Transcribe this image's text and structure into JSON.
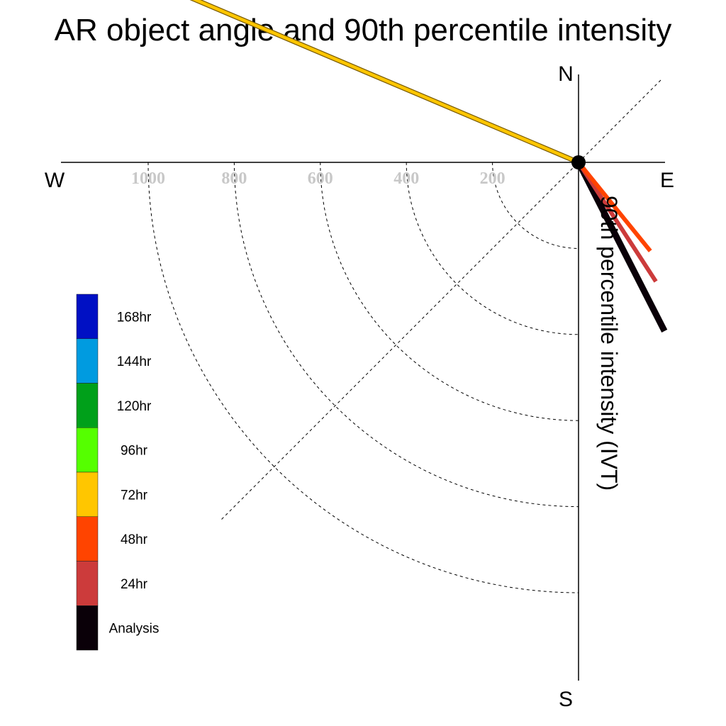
{
  "chart_data": {
    "type": "polar-vector",
    "title": "AR object angle and 90th percentile intensity",
    "radial_label": "90th percentile intensity (IVT)",
    "compass": {
      "north": "N",
      "south": "S",
      "east": "E",
      "west": "W"
    },
    "radial_ticks": [
      200,
      400,
      600,
      800,
      1000
    ],
    "radial_max": 1200,
    "series": [
      {
        "name": "Analysis",
        "angle_deg": -63,
        "magnitude": 440,
        "color": "#0a0008"
      },
      {
        "name": "24hr",
        "angle_deg": -57,
        "magnitude": 330,
        "color": "#cc3b3b"
      },
      {
        "name": "48hr",
        "angle_deg": -51,
        "magnitude": 265,
        "color": "#ff4400"
      },
      {
        "name": "72hr",
        "angle_deg": 157,
        "magnitude": 1150,
        "color": "#ffc600"
      }
    ],
    "legend": [
      {
        "label": "168hr",
        "color": "#0010c4"
      },
      {
        "label": "144hr",
        "color": "#009be0"
      },
      {
        "label": "120hr",
        "color": "#00a01a"
      },
      {
        "label": "96hr",
        "color": "#55ff00"
      },
      {
        "label": "72hr",
        "color": "#ffc600"
      },
      {
        "label": "48hr",
        "color": "#ff4400"
      },
      {
        "label": "24hr",
        "color": "#cc3b3b"
      },
      {
        "label": "Analysis",
        "color": "#0a0008"
      }
    ],
    "legend_position": "left",
    "grid": true
  }
}
